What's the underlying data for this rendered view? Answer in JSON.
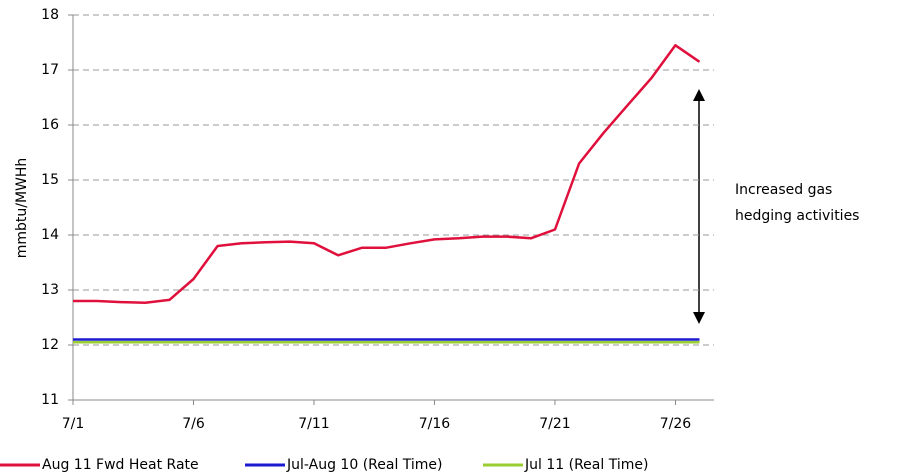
{
  "chart_data": {
    "type": "line",
    "y_label": "mmbtu/MWHh",
    "annotation": [
      "Increased gas",
      "hedging activities"
    ],
    "categories": [
      "7/1",
      null,
      null,
      null,
      null,
      "7/6",
      null,
      null,
      null,
      null,
      "7/11",
      null,
      null,
      null,
      null,
      "7/16",
      null,
      null,
      null,
      null,
      "7/21",
      null,
      null,
      null,
      null,
      "7/26",
      null
    ],
    "series": [
      {
        "name": "Aug 11 Fwd Heat Rate",
        "color": "#e0103c",
        "values": [
          12.8,
          12.8,
          12.78,
          12.77,
          12.82,
          13.2,
          13.8,
          13.85,
          13.87,
          13.88,
          13.85,
          13.63,
          13.77,
          13.77,
          13.85,
          13.92,
          13.94,
          13.97,
          13.97,
          13.94,
          14.1,
          15.3,
          15.85,
          16.35,
          16.85,
          17.45,
          17.15
        ]
      },
      {
        "name": "Jul-Aug 10 (Real Time)",
        "color": "#1a1ad0",
        "values": [
          12.1,
          12.1,
          12.1,
          12.1,
          12.1,
          12.1,
          12.1,
          12.1,
          12.1,
          12.1,
          12.1,
          12.1,
          12.1,
          12.1,
          12.1,
          12.1,
          12.1,
          12.1,
          12.1,
          12.1,
          12.1,
          12.1,
          12.1,
          12.1,
          12.1,
          12.1,
          12.1
        ]
      },
      {
        "name": "Jul 11 (Real Time)",
        "color": "#9acd32",
        "values": [
          12.05,
          12.05,
          12.05,
          12.05,
          12.05,
          12.05,
          12.05,
          12.05,
          12.05,
          12.05,
          12.05,
          12.05,
          12.05,
          12.05,
          12.05,
          12.05,
          12.05,
          12.05,
          12.05,
          12.05,
          12.05,
          12.05,
          12.05,
          12.05,
          12.05,
          12.05,
          12.05
        ]
      }
    ],
    "ylim": [
      11,
      18
    ],
    "yticks": [
      11,
      12,
      13,
      14,
      15,
      16,
      17,
      18
    ],
    "grid": true
  }
}
